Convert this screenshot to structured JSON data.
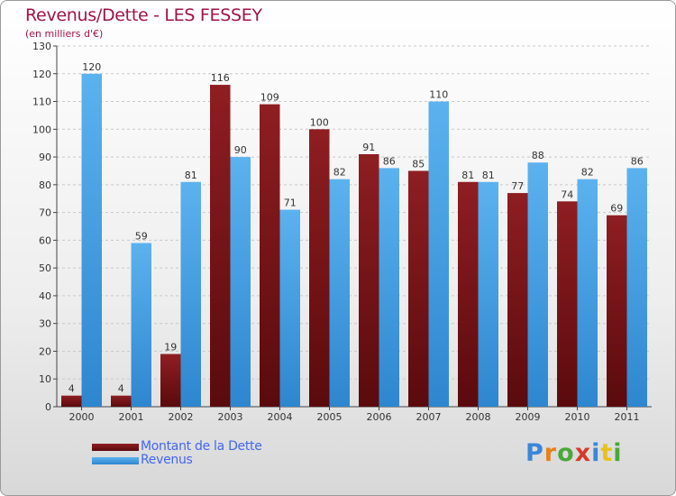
{
  "colors": {
    "title": "#a01442",
    "debt": "#7a1518",
    "revenue": "#4da6e8",
    "legend_text": "#4466ee"
  },
  "chart_data": {
    "type": "bar",
    "title": "Revenus/Dette - LES FESSEY",
    "subtitle": "(en milliers d'€)",
    "xlabel": "",
    "ylabel": "",
    "ylim": [
      0,
      130
    ],
    "yticks": [
      0,
      10,
      20,
      30,
      40,
      50,
      60,
      70,
      80,
      90,
      100,
      110,
      120,
      130
    ],
    "grid": true,
    "categories": [
      "2000",
      "2001",
      "2002",
      "2003",
      "2004",
      "2005",
      "2006",
      "2007",
      "2008",
      "2009",
      "2010",
      "2011"
    ],
    "series": [
      {
        "name": "Montant de la Dette",
        "color": "#7a1518",
        "values": [
          4,
          4,
          19,
          116,
          109,
          100,
          91,
          85,
          81,
          77,
          74,
          69
        ]
      },
      {
        "name": "Revenus",
        "color": "#4da6e8",
        "values": [
          120,
          59,
          81,
          90,
          71,
          82,
          86,
          110,
          81,
          88,
          82,
          86
        ]
      }
    ],
    "legend": "bottom-left"
  },
  "logo": {
    "text": "Proxiti",
    "letter_colors": [
      "#3a86d8",
      "#e8801a",
      "#4aa83a",
      "#d63a2a",
      "#3a86d8",
      "#e8c21a",
      "#4aa83a"
    ]
  }
}
